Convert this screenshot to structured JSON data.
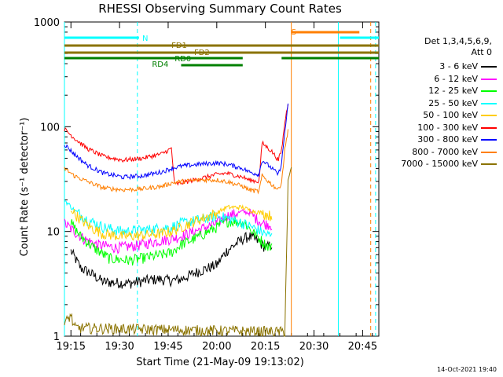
{
  "chart_data": {
    "type": "line",
    "title": "RHESSI Observing Summary Count Rates",
    "xlabel": "Start Time (21-May-09 19:13:02)",
    "ylabel": "Count Rate (s⁻¹ detector⁻¹)",
    "yscale": "log",
    "ylim": [
      1,
      1000
    ],
    "xlim_minutes": [
      0,
      97
    ],
    "x_tick_labels": [
      "19:15",
      "19:30",
      "19:45",
      "20:00",
      "20:15",
      "20:30",
      "20:45"
    ],
    "x_tick_minutes": [
      2,
      17,
      32,
      47,
      62,
      77,
      92
    ],
    "y_tick_labels": [
      "1",
      "10",
      "100",
      "1000"
    ],
    "y_tick_values": [
      1,
      10,
      100,
      1000
    ],
    "legend_header": [
      "Det 1,3,4,5,6,9,",
      "Att 0"
    ],
    "series": [
      {
        "name": "3 - 6 keV",
        "color": "#000000",
        "points": [
          [
            2,
            6.5
          ],
          [
            5,
            4.5
          ],
          [
            8,
            4
          ],
          [
            12,
            3.3
          ],
          [
            20,
            3.2
          ],
          [
            25,
            3.4
          ],
          [
            29,
            3.5
          ],
          [
            33,
            3.4
          ],
          [
            36,
            3.5
          ],
          [
            40,
            4
          ],
          [
            47,
            4.8
          ],
          [
            50,
            6.5
          ],
          [
            55,
            8.5
          ],
          [
            57,
            9
          ],
          [
            60,
            8
          ],
          [
            62,
            7
          ],
          [
            64,
            7.5
          ]
        ]
      },
      {
        "name": "6 - 12 keV",
        "color": "#ff00ff",
        "points": [
          [
            0,
            12
          ],
          [
            3,
            10
          ],
          [
            6,
            8.5
          ],
          [
            10,
            7.5
          ],
          [
            16,
            7
          ],
          [
            22,
            7.3
          ],
          [
            28,
            8
          ],
          [
            33,
            8.5
          ],
          [
            36,
            9
          ],
          [
            40,
            10
          ],
          [
            47,
            12
          ],
          [
            50,
            14
          ],
          [
            55,
            15.5
          ],
          [
            57,
            15
          ],
          [
            61,
            12
          ],
          [
            64,
            11.5
          ]
        ]
      },
      {
        "name": "12 - 25 keV",
        "color": "#00ff00",
        "points": [
          [
            2,
            12
          ],
          [
            5,
            9
          ],
          [
            9,
            7
          ],
          [
            14,
            5.5
          ],
          [
            20,
            5.3
          ],
          [
            26,
            5.7
          ],
          [
            30,
            6
          ],
          [
            33,
            6.3
          ],
          [
            36,
            7.5
          ],
          [
            40,
            8.5
          ],
          [
            47,
            11
          ],
          [
            50,
            12.5
          ],
          [
            55,
            12.5
          ],
          [
            58,
            10
          ],
          [
            62,
            7.5
          ],
          [
            64,
            7
          ]
        ]
      },
      {
        "name": "25 - 50 keV",
        "color": "#00ffff",
        "points": [
          [
            0,
            20
          ],
          [
            3,
            16
          ],
          [
            7,
            13
          ],
          [
            12,
            11
          ],
          [
            18,
            10
          ],
          [
            24,
            10.3
          ],
          [
            30,
            10.8
          ],
          [
            33,
            11
          ],
          [
            36,
            12
          ],
          [
            42,
            13
          ],
          [
            47,
            14
          ],
          [
            50,
            13.5
          ],
          [
            55,
            12
          ],
          [
            58,
            11
          ],
          [
            62,
            9.5
          ],
          [
            64,
            9
          ]
        ]
      },
      {
        "name": "50 - 100 keV",
        "color": "#ffcc00",
        "points": [
          [
            2,
            16
          ],
          [
            5,
            13
          ],
          [
            8,
            11
          ],
          [
            12,
            9.5
          ],
          [
            18,
            9
          ],
          [
            24,
            9.2
          ],
          [
            30,
            9.6
          ],
          [
            33,
            10
          ],
          [
            36,
            11
          ],
          [
            40,
            12.5
          ],
          [
            47,
            15
          ],
          [
            50,
            17
          ],
          [
            55,
            17
          ],
          [
            57,
            16
          ],
          [
            61,
            15
          ],
          [
            64,
            14
          ]
        ]
      },
      {
        "name": "100 - 300 keV",
        "color": "#ff0000",
        "points": [
          [
            0,
            95
          ],
          [
            3,
            78
          ],
          [
            7,
            62
          ],
          [
            12,
            52
          ],
          [
            18,
            48
          ],
          [
            24,
            50
          ],
          [
            30,
            55
          ],
          [
            33,
            62
          ],
          [
            34,
            28
          ],
          [
            40,
            31
          ],
          [
            47,
            35
          ],
          [
            50,
            36
          ],
          [
            55,
            33
          ],
          [
            57,
            31
          ],
          [
            60,
            30
          ],
          [
            61,
            70
          ],
          [
            64,
            58
          ],
          [
            66,
            48
          ],
          [
            67,
            60
          ],
          [
            68,
            110
          ],
          [
            69,
            170
          ]
        ]
      },
      {
        "name": "300 - 800 keV",
        "color": "#0000ff",
        "points": [
          [
            0,
            68
          ],
          [
            3,
            55
          ],
          [
            7,
            43
          ],
          [
            12,
            36
          ],
          [
            18,
            33
          ],
          [
            24,
            34
          ],
          [
            30,
            37
          ],
          [
            33,
            40
          ],
          [
            36,
            42
          ],
          [
            42,
            44
          ],
          [
            47,
            45
          ],
          [
            50,
            44
          ],
          [
            55,
            40
          ],
          [
            57,
            37
          ],
          [
            60,
            35
          ],
          [
            61,
            48
          ],
          [
            64,
            40
          ],
          [
            66,
            35
          ],
          [
            67,
            45
          ],
          [
            68,
            90
          ],
          [
            69,
            160
          ]
        ]
      },
      {
        "name": "800 - 7000 keV",
        "color": "#ff7f00",
        "points": [
          [
            0,
            40
          ],
          [
            3,
            34
          ],
          [
            7,
            30
          ],
          [
            12,
            26
          ],
          [
            18,
            25
          ],
          [
            24,
            25.5
          ],
          [
            30,
            27
          ],
          [
            33,
            29
          ],
          [
            36,
            30
          ],
          [
            42,
            31
          ],
          [
            47,
            31
          ],
          [
            50,
            30
          ],
          [
            55,
            27
          ],
          [
            57,
            25
          ],
          [
            60,
            24
          ],
          [
            61,
            34
          ],
          [
            64,
            28
          ],
          [
            66,
            25
          ],
          [
            67,
            30
          ],
          [
            68,
            60
          ],
          [
            69,
            95
          ]
        ]
      },
      {
        "name": "7000 - 15000 keV",
        "color": "#8b7300",
        "points": [
          [
            0,
            1.3
          ],
          [
            2,
            1.6
          ],
          [
            3,
            1.2
          ],
          [
            68,
            1.1
          ],
          [
            69,
            30
          ],
          [
            70,
            40
          ]
        ]
      }
    ],
    "status_bars": [
      {
        "label": "N",
        "color": "#00ffff",
        "segments": [
          [
            0,
            23
          ],
          [
            85,
            97
          ]
        ]
      },
      {
        "label": "S",
        "color": "#ff7f00",
        "segments": [
          [
            70,
            91
          ]
        ]
      },
      {
        "label": "FD1",
        "color": "#8b7300",
        "segments": [
          [
            0,
            97
          ]
        ]
      },
      {
        "label": "FD2",
        "color": "#8b7300",
        "segments": [
          [
            0,
            97
          ]
        ]
      },
      {
        "label": "RD0",
        "color": "#008000",
        "segments": [
          [
            0,
            55
          ],
          [
            67,
            97
          ]
        ]
      },
      {
        "label": "RD4",
        "color": "#008000",
        "segments": [
          [
            36,
            55
          ]
        ]
      }
    ],
    "vertical_markers": [
      {
        "minute": 0,
        "color": "#00ffff",
        "style": "solid"
      },
      {
        "minute": 22.5,
        "color": "#00ffff",
        "style": "dashed"
      },
      {
        "minute": 70,
        "color": "#ff7f00",
        "style": "solid"
      },
      {
        "minute": 84.5,
        "color": "#00ffff",
        "style": "solid"
      },
      {
        "minute": 94.5,
        "color": "#ff7f00",
        "style": "dashed"
      },
      {
        "minute": 96,
        "color": "#00ffff",
        "style": "dashed"
      }
    ],
    "timestamp": "14-Oct-2021 19:40"
  }
}
